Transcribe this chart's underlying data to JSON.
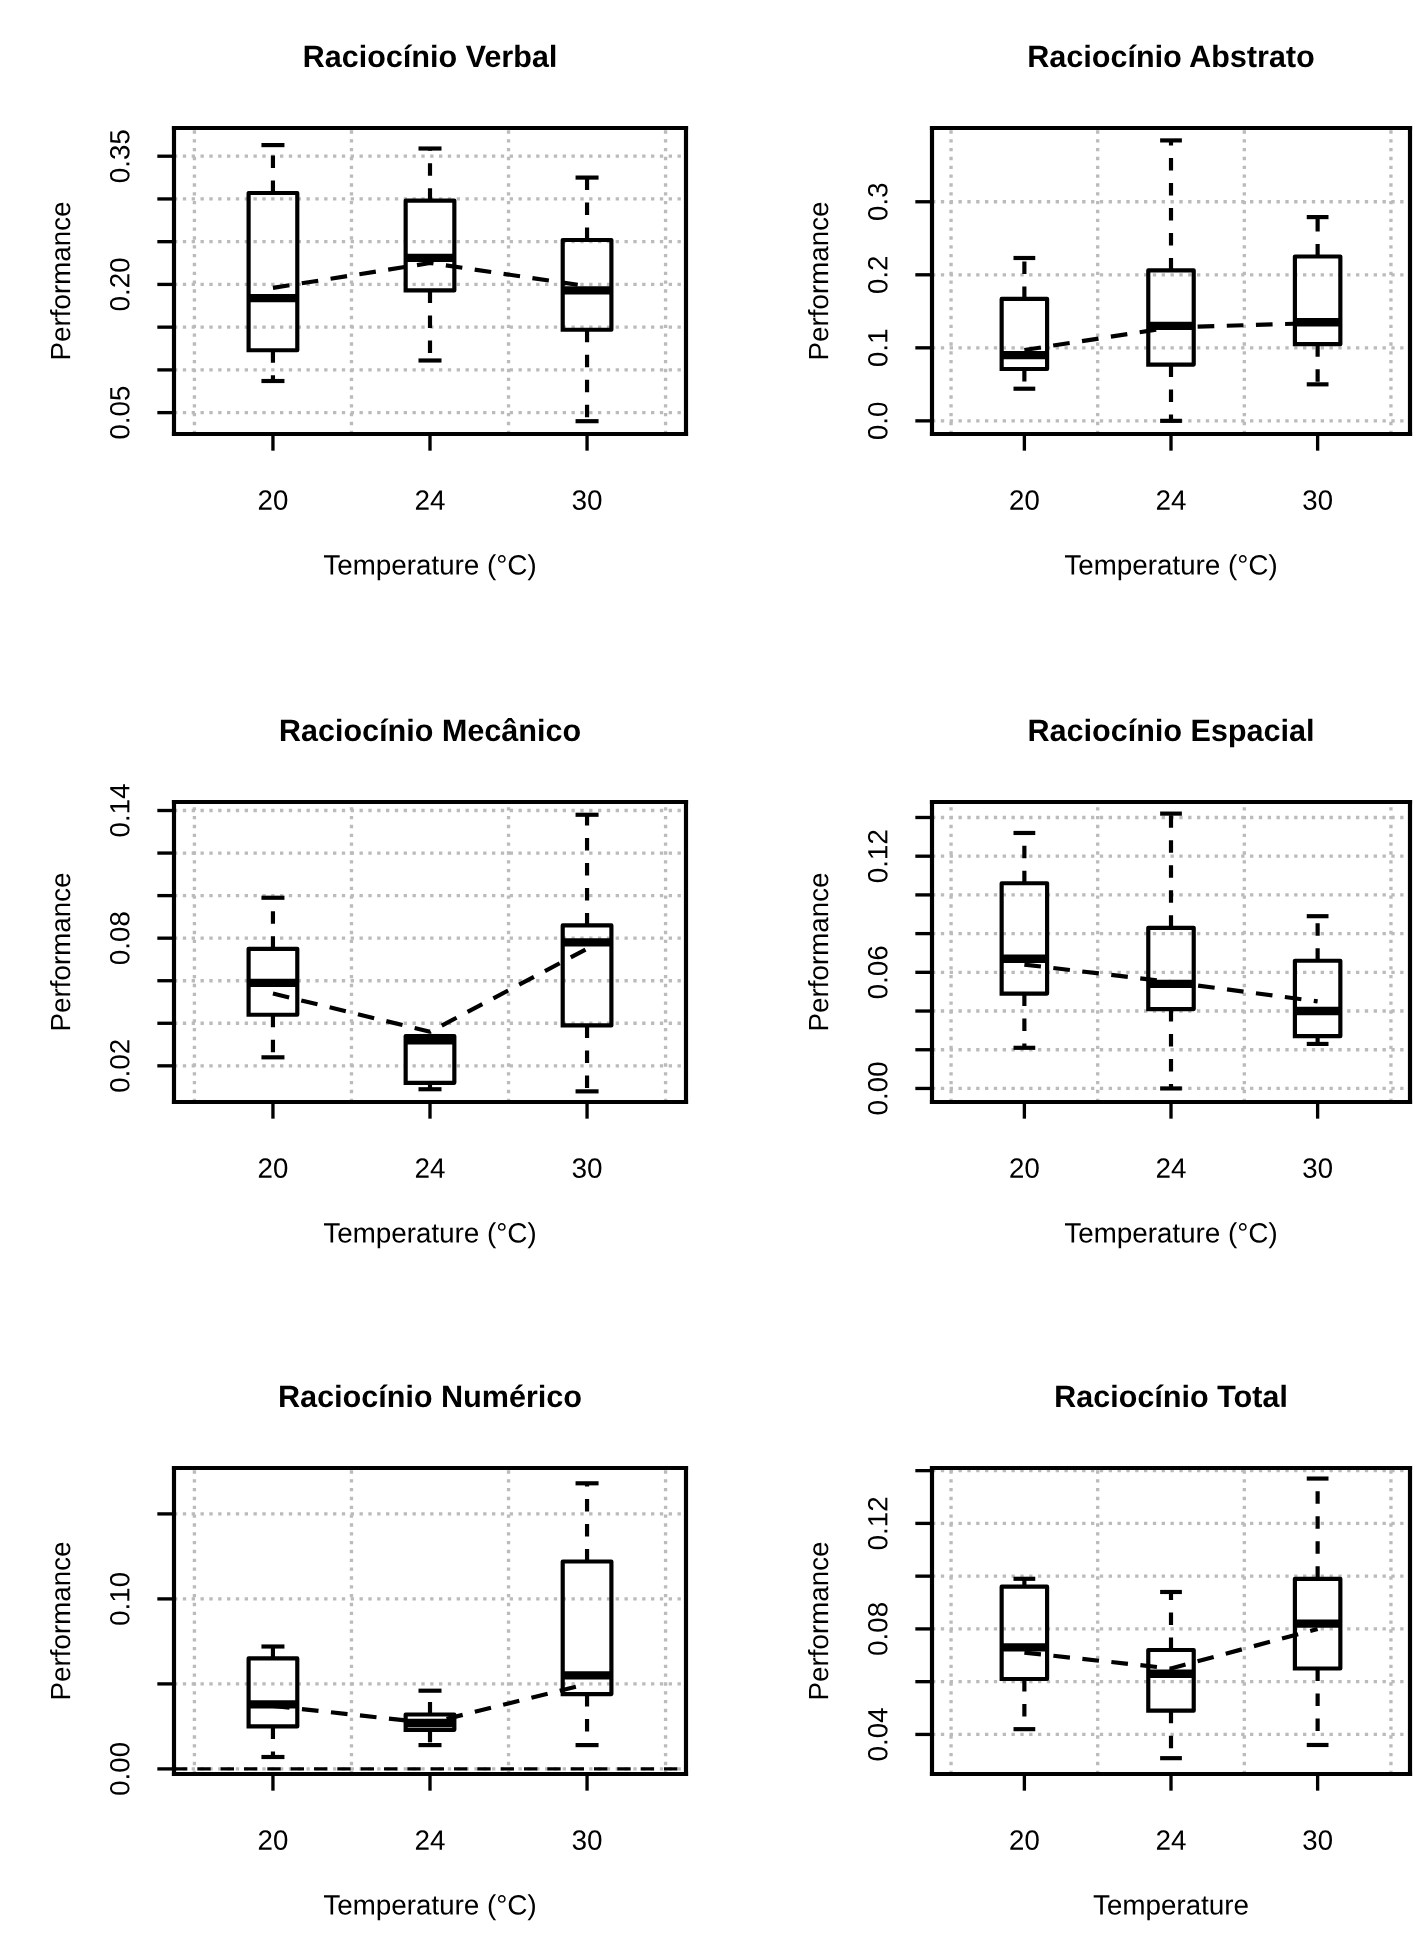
{
  "chart_data": [
    {
      "type": "box",
      "title": "Raciocínio Verbal",
      "xlabel": "Temperature (°C)",
      "ylabel": "Performance",
      "categories": [
        "20",
        "24",
        "30"
      ],
      "ylim": [
        0.025,
        0.383
      ],
      "yticks": [
        0.05,
        {
          "value": 0.1,
          "label": null
        },
        {
          "value": 0.15,
          "label": null
        },
        {
          "value": 0.2,
          "label": "0.20"
        },
        {
          "value": 0.25,
          "label": null
        },
        {
          "value": 0.3,
          "label": null
        },
        0.35
      ],
      "grid": true,
      "boxes": [
        {
          "low": 0.087,
          "q1": 0.123,
          "median": 0.184,
          "q3": 0.307,
          "high": 0.363
        },
        {
          "low": 0.111,
          "q1": 0.193,
          "median": 0.231,
          "q3": 0.298,
          "high": 0.359
        },
        {
          "low": 0.04,
          "q1": 0.147,
          "median": 0.193,
          "q3": 0.252,
          "high": 0.325
        }
      ],
      "series": [
        {
          "type": "line",
          "color": "#000000",
          "line_style": "dashed",
          "marker": "none",
          "values": [
            0.196,
            0.225,
            0.198
          ]
        }
      ]
    },
    {
      "type": "box",
      "title": "Raciocínio Abstrato",
      "xlabel": "Temperature (°C)",
      "ylabel": "Performance",
      "categories": [
        "20",
        "24",
        "30"
      ],
      "ylim": [
        -0.018,
        0.401
      ],
      "yticks": [
        {
          "value": 0,
          "label": "0.0"
        },
        0.1,
        0.2,
        0.3
      ],
      "grid": true,
      "boxes": [
        {
          "low": 0.044,
          "q1": 0.071,
          "median": 0.09,
          "q3": 0.167,
          "high": 0.223
        },
        {
          "low": 0.0,
          "q1": 0.077,
          "median": 0.13,
          "q3": 0.206,
          "high": 0.384
        },
        {
          "low": 0.05,
          "q1": 0.105,
          "median": 0.135,
          "q3": 0.225,
          "high": 0.279
        }
      ],
      "series": [
        {
          "type": "line",
          "color": "#000000",
          "line_style": "dashed",
          "marker": "none",
          "values": [
            0.097,
            0.128,
            0.134
          ]
        }
      ]
    },
    {
      "type": "box",
      "title": "Raciocínio Mecânico",
      "xlabel": "Temperature (°C)",
      "ylabel": "Performance",
      "categories": [
        "20",
        "24",
        "30"
      ],
      "ylim": [
        0.003,
        0.144
      ],
      "yticks": [
        0.02,
        {
          "value": 0.04,
          "label": null
        },
        {
          "value": 0.06,
          "label": null
        },
        0.08,
        {
          "value": 0.1,
          "label": null
        },
        {
          "value": 0.12,
          "label": null
        },
        0.14
      ],
      "grid": true,
      "boxes": [
        {
          "low": 0.024,
          "q1": 0.044,
          "median": 0.059,
          "q3": 0.075,
          "high": 0.099
        },
        {
          "low": 0.009,
          "q1": 0.012,
          "median": 0.032,
          "q3": 0.034,
          "high": 0.034
        },
        {
          "low": 0.008,
          "q1": 0.039,
          "median": 0.078,
          "q3": 0.086,
          "high": 0.138
        }
      ],
      "series": [
        {
          "type": "line",
          "color": "#000000",
          "line_style": "dashed",
          "marker": "none",
          "values": [
            0.054,
            0.036,
            0.075
          ]
        }
      ]
    },
    {
      "type": "box",
      "title": "Raciocínio Espacial",
      "xlabel": "Temperature (°C)",
      "ylabel": "Performance",
      "categories": [
        "20",
        "24",
        "30"
      ],
      "ylim": [
        -0.007,
        0.148
      ],
      "yticks": [
        {
          "value": 0,
          "label": "0.00"
        },
        {
          "value": 0.02,
          "label": null
        },
        {
          "value": 0.04,
          "label": null
        },
        0.06,
        {
          "value": 0.08,
          "label": null
        },
        {
          "value": 0.1,
          "label": null
        },
        0.12,
        {
          "value": 0.14,
          "label": null
        }
      ],
      "grid": true,
      "boxes": [
        {
          "low": 0.021,
          "q1": 0.049,
          "median": 0.067,
          "q3": 0.106,
          "high": 0.132
        },
        {
          "low": 0.0,
          "q1": 0.041,
          "median": 0.054,
          "q3": 0.083,
          "high": 0.142
        },
        {
          "low": 0.023,
          "q1": 0.027,
          "median": 0.04,
          "q3": 0.066,
          "high": 0.089
        }
      ],
      "series": [
        {
          "type": "line",
          "color": "#000000",
          "line_style": "dashed",
          "marker": "none",
          "values": [
            0.064,
            0.055,
            0.045
          ]
        }
      ]
    },
    {
      "type": "box",
      "title": "Raciocínio Numérico",
      "xlabel": "Temperature (°C)",
      "ylabel": "Performance",
      "categories": [
        "20",
        "24",
        "30"
      ],
      "ylim": [
        -0.003,
        0.177
      ],
      "yticks": [
        {
          "value": 0,
          "label": "0.00"
        },
        {
          "value": 0.05,
          "label": null
        },
        {
          "value": 0.1,
          "label": "0.10"
        },
        {
          "value": 0.15,
          "label": null
        }
      ],
      "grid": true,
      "ref_lines": [
        {
          "axis": "y",
          "value": 0,
          "line_style": "dashed",
          "color": "#000000"
        }
      ],
      "boxes": [
        {
          "low": 0.007,
          "q1": 0.025,
          "median": 0.038,
          "q3": 0.065,
          "high": 0.072
        },
        {
          "low": 0.014,
          "q1": 0.023,
          "median": 0.027,
          "q3": 0.032,
          "high": 0.046
        },
        {
          "low": 0.014,
          "q1": 0.044,
          "median": 0.055,
          "q3": 0.122,
          "high": 0.168
        }
      ],
      "series": [
        {
          "type": "line",
          "color": "#000000",
          "line_style": "dashed",
          "marker": "none",
          "values": [
            0.037,
            0.027,
            0.05
          ]
        }
      ]
    },
    {
      "type": "box",
      "title": "Raciocínio Total",
      "xlabel": "Temperature",
      "ylabel": "Performance",
      "categories": [
        "20",
        "24",
        "30"
      ],
      "ylim": [
        0.025,
        0.141
      ],
      "yticks": [
        0.04,
        {
          "value": 0.06,
          "label": null
        },
        0.08,
        {
          "value": 0.1,
          "label": null
        },
        0.12,
        {
          "value": 0.14,
          "label": null
        }
      ],
      "grid": true,
      "boxes": [
        {
          "low": 0.042,
          "q1": 0.061,
          "median": 0.073,
          "q3": 0.096,
          "high": 0.099
        },
        {
          "low": 0.031,
          "q1": 0.049,
          "median": 0.063,
          "q3": 0.072,
          "high": 0.094
        },
        {
          "low": 0.036,
          "q1": 0.065,
          "median": 0.082,
          "q3": 0.099,
          "high": 0.137
        }
      ],
      "series": [
        {
          "type": "line",
          "color": "#000000",
          "line_style": "dashed",
          "marker": "none",
          "values": [
            0.071,
            0.065,
            0.08
          ]
        }
      ]
    }
  ]
}
